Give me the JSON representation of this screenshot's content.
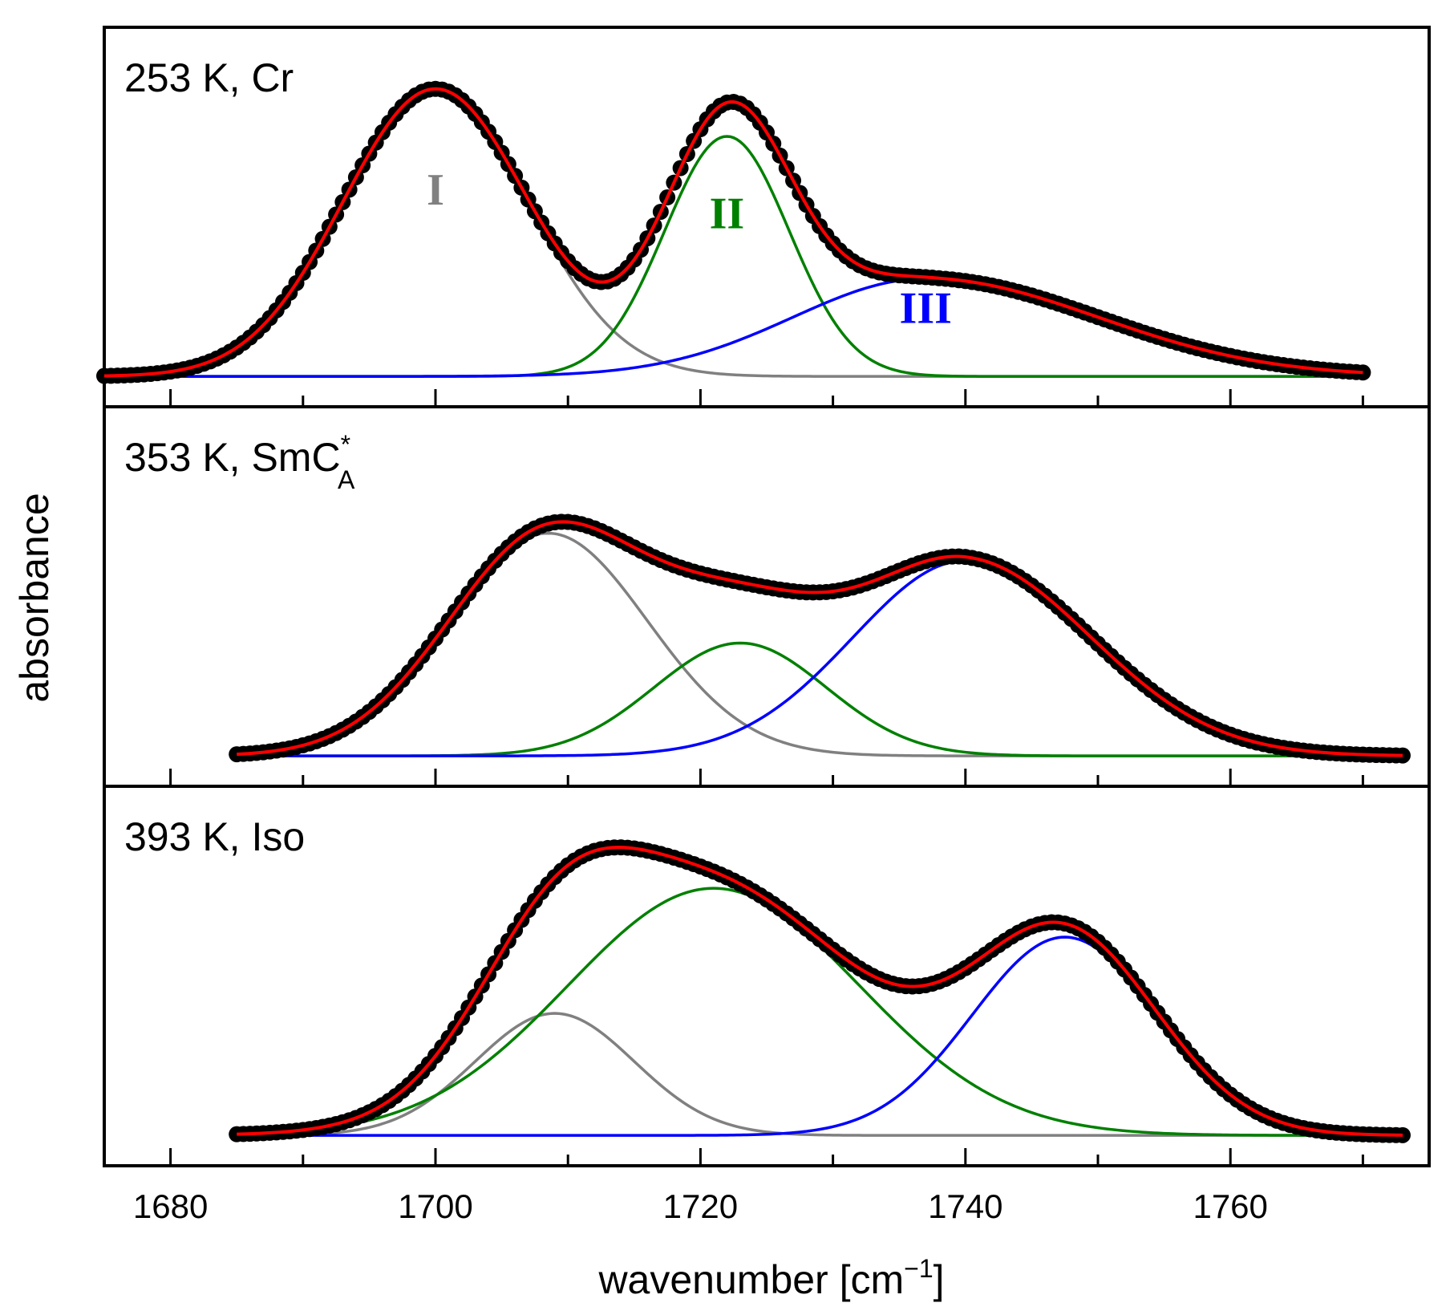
{
  "chart_data": {
    "type": "line",
    "xlabel_main": "wavenumber [cm",
    "xlabel_sup": "−1",
    "xlabel_close": "]",
    "ylabel": "absorbance",
    "xlim": [
      1675,
      1775
    ],
    "xticks": [
      1680,
      1700,
      1720,
      1740,
      1760
    ],
    "colors": {
      "data": "#000000",
      "fit": "#ff0000",
      "I": "#808080",
      "II": "#008000",
      "III": "#0000ff"
    },
    "panels": [
      {
        "label_main": "253 K, Cr",
        "label_sup": "",
        "label_sub": "",
        "x_start": 1675,
        "x_end": 1770,
        "ylim": [
          0,
          1.05
        ],
        "components": [
          {
            "name": "I",
            "center": 1700,
            "height": 0.97,
            "width_left": 7.0,
            "width_right": 7.0,
            "color": "#808080"
          },
          {
            "name": "II",
            "center": 1722,
            "height": 0.81,
            "width_left": 4.7,
            "width_right": 4.7,
            "color": "#008000"
          },
          {
            "name": "III",
            "center": 1737,
            "height": 0.33,
            "width_left": 10.0,
            "width_right": 13.0,
            "color": "#0000ff"
          }
        ],
        "component_labels": [
          {
            "text": "I",
            "x": 1700,
            "y": 0.58,
            "color": "#808080"
          },
          {
            "text": "II",
            "x": 1722,
            "y": 0.5,
            "color": "#008000"
          },
          {
            "text": "III",
            "x": 1737,
            "y": 0.18,
            "color": "#0000ff"
          }
        ]
      },
      {
        "label_main": "353 K, SmC",
        "label_sup": "*",
        "label_sub": "A",
        "x_start": 1685,
        "x_end": 1773,
        "ylim": [
          0,
          1.02
        ],
        "components": [
          {
            "name": "I",
            "center": 1708.5,
            "height": 0.73,
            "width_left": 7.5,
            "width_right": 7.5,
            "color": "#808080"
          },
          {
            "name": "II",
            "center": 1723,
            "height": 0.37,
            "width_left": 6.5,
            "width_right": 6.5,
            "color": "#008000"
          },
          {
            "name": "III",
            "center": 1740,
            "height": 0.64,
            "width_left": 8.5,
            "width_right": 9.5,
            "color": "#0000ff"
          }
        ],
        "component_labels": []
      },
      {
        "label_main": "393 K, Iso",
        "label_sup": "",
        "label_sub": "",
        "x_start": 1685,
        "x_end": 1773,
        "ylim": [
          0,
          1.02
        ],
        "components": [
          {
            "name": "I",
            "center": 1709,
            "height": 0.4,
            "width_left": 6.0,
            "width_right": 6.0,
            "color": "#808080"
          },
          {
            "name": "II",
            "center": 1721,
            "height": 0.81,
            "width_left": 11.0,
            "width_right": 11.0,
            "color": "#008000"
          },
          {
            "name": "III",
            "center": 1747.5,
            "height": 0.65,
            "width_left": 7.0,
            "width_right": 7.0,
            "color": "#0000ff"
          }
        ],
        "component_labels": []
      }
    ]
  }
}
